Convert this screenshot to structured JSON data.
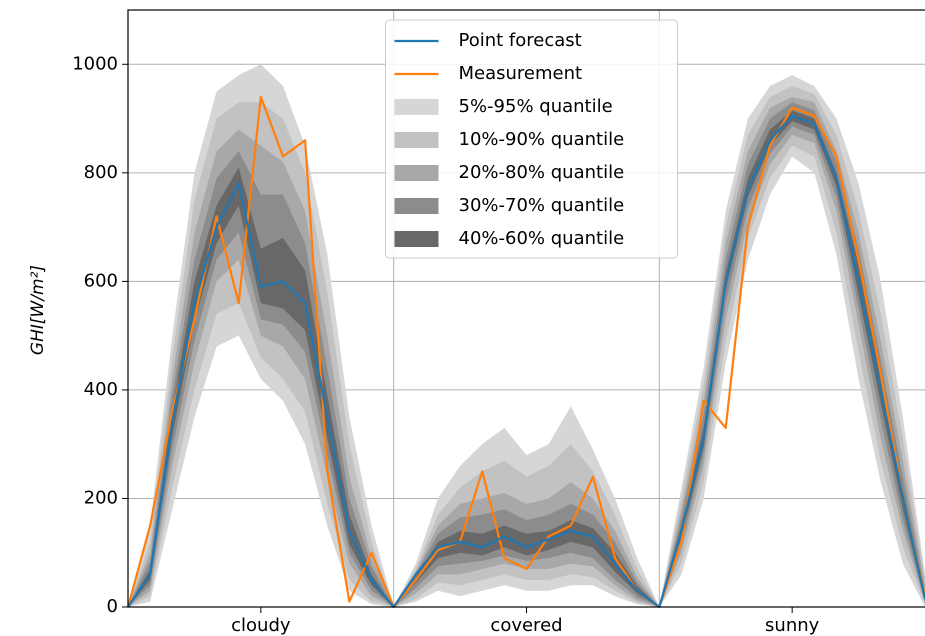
{
  "chart_data": {
    "type": "line",
    "ylabel": "GHI[W/m²]",
    "x": [
      0,
      2,
      4,
      6,
      8,
      10,
      12,
      14,
      16,
      18,
      20,
      22,
      24,
      26,
      28,
      30,
      32,
      34,
      36,
      38,
      40,
      42,
      44,
      46,
      48,
      50,
      52,
      54,
      56,
      58,
      60,
      62,
      64,
      66,
      68,
      70,
      72
    ],
    "xlim": [
      0,
      72
    ],
    "xticks": [
      {
        "value": 12,
        "label": "cloudy"
      },
      {
        "value": 36,
        "label": "covered"
      },
      {
        "value": 60,
        "label": "sunny"
      }
    ],
    "xgrid": [
      24,
      48
    ],
    "ylim": [
      0,
      1100
    ],
    "yticks": [
      0,
      200,
      400,
      600,
      800,
      1000
    ],
    "grid": true,
    "legend": "upper center",
    "bands": [
      {
        "name": "5%-95% quantile",
        "color": "#d6d6d6",
        "lower": [
          0,
          10,
          180,
          350,
          480,
          500,
          420,
          380,
          300,
          150,
          30,
          5,
          0,
          10,
          30,
          20,
          30,
          40,
          30,
          30,
          40,
          40,
          20,
          5,
          0,
          60,
          200,
          450,
          640,
          760,
          830,
          800,
          650,
          420,
          230,
          80,
          0
        ],
        "upper": [
          0,
          150,
          500,
          800,
          950,
          980,
          1000,
          960,
          850,
          650,
          350,
          150,
          0,
          80,
          200,
          260,
          300,
          330,
          280,
          300,
          370,
          290,
          200,
          90,
          0,
          220,
          440,
          730,
          900,
          960,
          980,
          960,
          900,
          780,
          600,
          350,
          60
        ]
      },
      {
        "name": "10%-90% quantile",
        "color": "#c2c2c2",
        "lower": [
          0,
          20,
          220,
          400,
          540,
          560,
          460,
          420,
          360,
          190,
          50,
          10,
          0,
          15,
          45,
          40,
          50,
          60,
          50,
          50,
          60,
          55,
          30,
          8,
          0,
          80,
          230,
          490,
          680,
          790,
          850,
          830,
          690,
          470,
          270,
          110,
          5
        ],
        "upper": [
          0,
          120,
          460,
          750,
          900,
          930,
          930,
          900,
          800,
          580,
          300,
          120,
          0,
          70,
          170,
          220,
          250,
          270,
          240,
          260,
          300,
          250,
          170,
          70,
          0,
          200,
          410,
          700,
          870,
          940,
          960,
          945,
          870,
          730,
          540,
          310,
          50
        ]
      },
      {
        "name": "20%-80% quantile",
        "color": "#a8a8a8",
        "lower": [
          0,
          30,
          260,
          450,
          600,
          640,
          500,
          480,
          420,
          240,
          80,
          20,
          0,
          25,
          60,
          60,
          70,
          80,
          70,
          70,
          80,
          75,
          40,
          12,
          0,
          100,
          260,
          530,
          710,
          815,
          870,
          855,
          730,
          520,
          310,
          140,
          8
        ],
        "upper": [
          0,
          100,
          420,
          690,
          840,
          880,
          850,
          820,
          730,
          500,
          240,
          90,
          0,
          65,
          150,
          190,
          200,
          210,
          190,
          200,
          230,
          200,
          140,
          55,
          0,
          180,
          380,
          670,
          840,
          920,
          940,
          930,
          840,
          690,
          490,
          270,
          40
        ]
      },
      {
        "name": "30%-70% quantile",
        "color": "#8c8c8c",
        "lower": [
          0,
          40,
          290,
          490,
          640,
          690,
          530,
          520,
          470,
          280,
          100,
          30,
          0,
          35,
          75,
          80,
          85,
          95,
          85,
          90,
          100,
          90,
          50,
          18,
          0,
          115,
          280,
          560,
          735,
          835,
          885,
          870,
          755,
          550,
          345,
          160,
          10
        ],
        "upper": [
          0,
          85,
          390,
          640,
          790,
          840,
          760,
          760,
          670,
          440,
          200,
          75,
          0,
          60,
          135,
          165,
          170,
          180,
          160,
          170,
          190,
          170,
          120,
          45,
          0,
          165,
          355,
          640,
          815,
          900,
          930,
          915,
          820,
          660,
          455,
          240,
          30
        ]
      },
      {
        "name": "40%-60% quantile",
        "color": "#686868",
        "lower": [
          0,
          50,
          315,
          525,
          670,
          740,
          560,
          550,
          510,
          310,
          115,
          40,
          0,
          45,
          90,
          100,
          95,
          110,
          95,
          105,
          120,
          110,
          65,
          25,
          0,
          128,
          295,
          585,
          755,
          850,
          895,
          880,
          775,
          575,
          375,
          180,
          12
        ],
        "upper": [
          0,
          70,
          365,
          600,
          740,
          810,
          660,
          680,
          620,
          390,
          170,
          60,
          0,
          55,
          120,
          140,
          135,
          150,
          135,
          140,
          160,
          145,
          100,
          38,
          0,
          150,
          330,
          615,
          790,
          880,
          915,
          900,
          800,
          630,
          425,
          215,
          22
        ]
      }
    ],
    "series": [
      {
        "name": "Point forecast",
        "color": "#1f77b4",
        "values": [
          0,
          60,
          340,
          560,
          700,
          780,
          590,
          600,
          560,
          350,
          140,
          50,
          0,
          60,
          110,
          120,
          110,
          130,
          110,
          125,
          140,
          130,
          80,
          30,
          0,
          140,
          310,
          600,
          770,
          860,
          905,
          890,
          790,
          600,
          400,
          200,
          15
        ]
      },
      {
        "name": "Measurement",
        "color": "#ff7f0e",
        "values": [
          0,
          150,
          360,
          530,
          720,
          560,
          940,
          830,
          860,
          250,
          10,
          100,
          0,
          50,
          105,
          120,
          250,
          90,
          70,
          130,
          150,
          240,
          90,
          30,
          0,
          120,
          380,
          330,
          700,
          850,
          920,
          905,
          830,
          640,
          430,
          200,
          20
        ]
      }
    ]
  }
}
